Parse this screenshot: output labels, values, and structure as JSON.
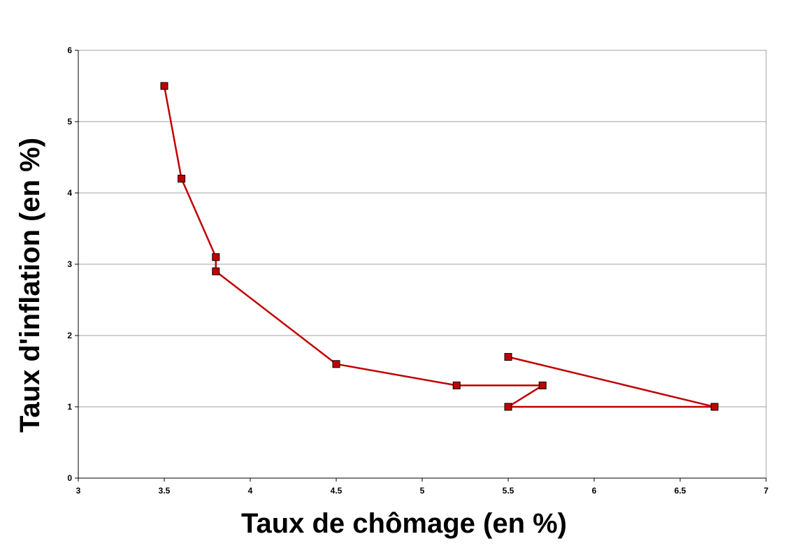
{
  "chart_data": {
    "type": "line",
    "title": "",
    "xlabel": "Taux de chômage (en %)",
    "ylabel": "Taux d'inflation (en %)",
    "xlim": [
      3,
      7
    ],
    "ylim": [
      0,
      6
    ],
    "x_ticks": [
      "3",
      "3.5",
      "4",
      "4.5",
      "5",
      "5.5",
      "6",
      "6.5",
      "7"
    ],
    "y_ticks": [
      "0",
      "1",
      "2",
      "3",
      "4",
      "5",
      "6"
    ],
    "grid": {
      "horizontal": true,
      "vertical": false
    },
    "series": [
      {
        "marker": "square",
        "color": "#c00000",
        "points": [
          {
            "x": 3.5,
            "y": 5.5
          },
          {
            "x": 3.6,
            "y": 4.2
          },
          {
            "x": 3.8,
            "y": 3.1
          },
          {
            "x": 3.8,
            "y": 2.9
          },
          {
            "x": 4.5,
            "y": 1.6
          },
          {
            "x": 5.2,
            "y": 1.3
          },
          {
            "x": 5.7,
            "y": 1.3
          },
          {
            "x": 5.5,
            "y": 1.0
          },
          {
            "x": 6.7,
            "y": 1.0
          },
          {
            "x": 5.5,
            "y": 1.7
          }
        ]
      }
    ]
  }
}
